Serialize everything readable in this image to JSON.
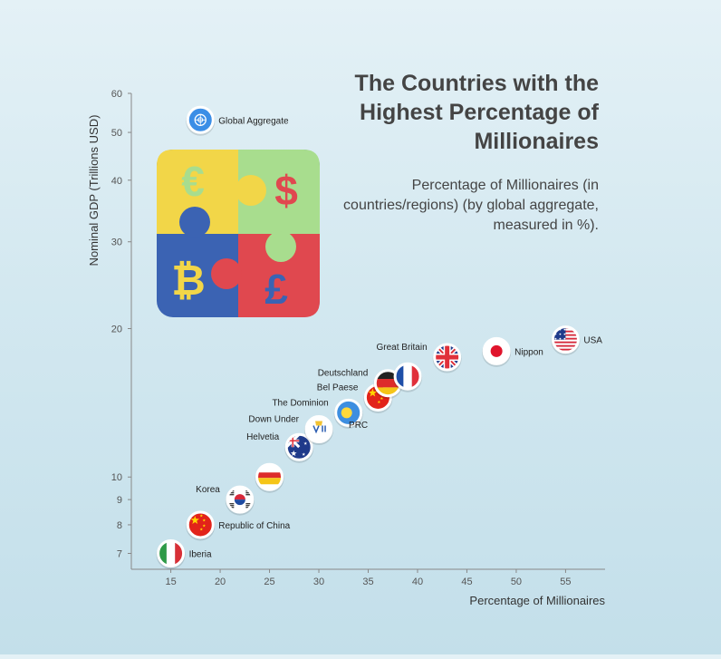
{
  "chart_data": {
    "type": "scatter",
    "title": "The Countries with the Highest Percentage of Millionaires",
    "subtitle": "Percentage of Millionaires (in countries/regions) (by global aggregate, measured in %).",
    "xlabel": "Percentage of Millionaires",
    "ylabel": "Nominal GDP (Trillions USD)",
    "x_ticks": [
      15,
      20,
      25,
      30,
      35,
      40,
      45,
      50,
      55
    ],
    "y_ticks": [
      7,
      8,
      9,
      10,
      20,
      30,
      40,
      50,
      60
    ],
    "xlim": [
      11,
      59
    ],
    "ylim": [
      6.5,
      60
    ],
    "y_scale": "log",
    "grid": false,
    "points": [
      {
        "label": "Iberia",
        "x": 15,
        "y": 7,
        "flag": "italy",
        "label_side": "right"
      },
      {
        "label": "Republic of China",
        "x": 18,
        "y": 8,
        "flag": "china",
        "label_side": "right"
      },
      {
        "label": "Korea",
        "x": 22,
        "y": 9,
        "flag": "south-korea",
        "label_side": "left"
      },
      {
        "label": "",
        "x": 25,
        "y": 10,
        "flag": "germany-alt",
        "label_side": "none"
      },
      {
        "label": "Helvetia",
        "x": 28,
        "y": 11.5,
        "flag": "australia",
        "label_side": "left"
      },
      {
        "label": "Down Under",
        "x": 30,
        "y": 12.5,
        "flag": "virgin-islands",
        "label_side": "left"
      },
      {
        "label": "The Dominion",
        "x": 33,
        "y": 13.5,
        "flag": "palau",
        "label_side": "left"
      },
      {
        "label": "Bel Paese",
        "x": 36,
        "y": 14.5,
        "flag": "china",
        "label_side": "left"
      },
      {
        "label": "PRC",
        "x": 34,
        "y": 12.8,
        "flag": "",
        "label_side": "text"
      },
      {
        "label": "Deutschland",
        "x": 37,
        "y": 15.5,
        "flag": "germany",
        "label_side": "left"
      },
      {
        "label": "",
        "x": 39,
        "y": 16,
        "flag": "france",
        "label_side": "none"
      },
      {
        "label": "Great Britain",
        "x": 43,
        "y": 17.5,
        "flag": "uk",
        "label_side": "left"
      },
      {
        "label": "Nippon",
        "x": 48,
        "y": 18,
        "flag": "japan",
        "label_side": "right"
      },
      {
        "label": "USA",
        "x": 55,
        "y": 19,
        "flag": "usa",
        "label_side": "right"
      },
      {
        "label": "Global Aggregate",
        "x": 18,
        "y": 53,
        "flag": "un",
        "label_side": "right"
      }
    ],
    "colors": {
      "axis": "#888888",
      "title": "#444444",
      "puzzle_yellow": "#f2d648",
      "puzzle_green": "#a8dd8e",
      "puzzle_blue": "#3b63b3",
      "puzzle_red": "#e0484f"
    },
    "decoration": {
      "type": "puzzle-currency-icon",
      "symbols": [
        "€",
        "$",
        "₿",
        "£"
      ]
    }
  }
}
